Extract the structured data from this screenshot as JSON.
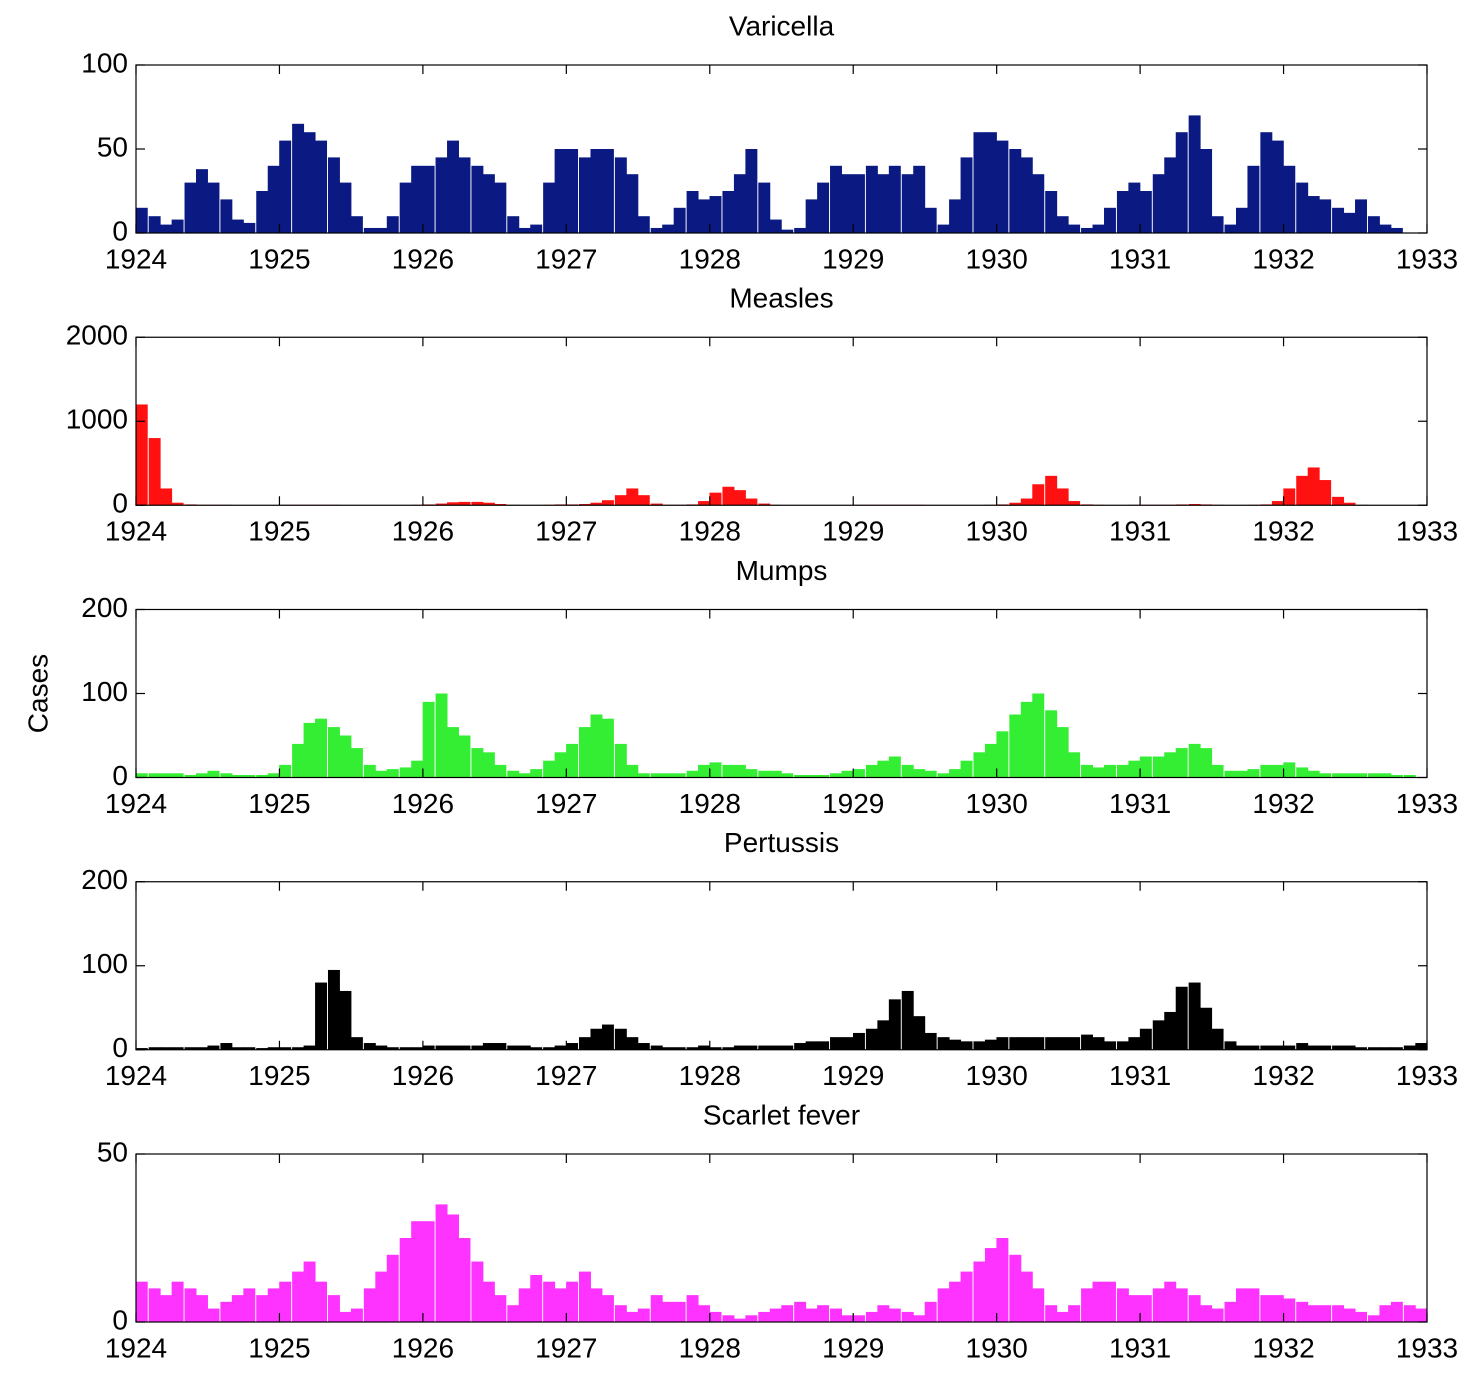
{
  "chart_data": [
    {
      "type": "bar",
      "title": "Varicella",
      "color": "#0b1a82",
      "x": [
        1924.04,
        1924.13,
        1924.21,
        1924.29,
        1924.38,
        1924.46,
        1924.54,
        1924.63,
        1924.71,
        1924.79,
        1924.88,
        1924.96,
        1925.04,
        1925.13,
        1925.21,
        1925.29,
        1925.38,
        1925.46,
        1925.54,
        1925.63,
        1925.71,
        1925.79,
        1925.88,
        1925.96,
        1926.04,
        1926.13,
        1926.21,
        1926.29,
        1926.38,
        1926.46,
        1926.54,
        1926.63,
        1926.71,
        1926.79,
        1926.88,
        1926.96,
        1927.04,
        1927.13,
        1927.21,
        1927.29,
        1927.38,
        1927.46,
        1927.54,
        1927.63,
        1927.71,
        1927.79,
        1927.88,
        1927.96,
        1928.04,
        1928.13,
        1928.21,
        1928.29,
        1928.38,
        1928.46,
        1928.54,
        1928.63,
        1928.71,
        1928.79,
        1928.88,
        1928.96,
        1929.04,
        1929.13,
        1929.21,
        1929.29,
        1929.38,
        1929.46,
        1929.54,
        1929.63,
        1929.71,
        1929.79,
        1929.88,
        1929.96,
        1930.04,
        1930.13,
        1930.21,
        1930.29,
        1930.38,
        1930.46,
        1930.54,
        1930.63,
        1930.71,
        1930.79,
        1930.88,
        1930.96,
        1931.04,
        1931.13,
        1931.21,
        1931.29,
        1931.38,
        1931.46,
        1931.54,
        1931.63,
        1931.71,
        1931.79,
        1931.88,
        1931.96,
        1932.04,
        1932.13,
        1932.21,
        1932.29,
        1932.38,
        1932.46,
        1932.54,
        1932.63,
        1932.71,
        1932.79,
        1932.88,
        1932.96
      ],
      "values": [
        15,
        10,
        5,
        8,
        30,
        38,
        30,
        20,
        8,
        6,
        25,
        40,
        55,
        65,
        60,
        55,
        45,
        30,
        10,
        3,
        3,
        10,
        30,
        40,
        40,
        45,
        55,
        45,
        40,
        35,
        30,
        10,
        3,
        5,
        30,
        50,
        50,
        45,
        50,
        50,
        45,
        35,
        10,
        3,
        5,
        15,
        25,
        20,
        22,
        25,
        35,
        50,
        30,
        8,
        2,
        3,
        20,
        30,
        40,
        35,
        35,
        40,
        35,
        40,
        35,
        40,
        15,
        5,
        20,
        45,
        60,
        60,
        55,
        50,
        45,
        35,
        25,
        10,
        5,
        3,
        5,
        15,
        25,
        30,
        25,
        35,
        45,
        60,
        70,
        50,
        10,
        5,
        15,
        40,
        60,
        55,
        40,
        30,
        22,
        20,
        15,
        12,
        20,
        10,
        5,
        3,
        0,
        0
      ],
      "xlim": [
        1924,
        1933
      ],
      "ylim": [
        0,
        100
      ],
      "xticks": [
        1924,
        1925,
        1926,
        1927,
        1928,
        1929,
        1930,
        1931,
        1932,
        1933
      ],
      "yticks": [
        0,
        50,
        100
      ]
    },
    {
      "type": "bar",
      "title": "Measles",
      "color": "#ff1111",
      "x": [
        1924.04,
        1924.13,
        1924.21,
        1924.29,
        1924.38,
        1924.46,
        1924.54,
        1924.63,
        1924.71,
        1924.79,
        1924.88,
        1924.96,
        1925.04,
        1925.13,
        1925.21,
        1925.29,
        1925.38,
        1925.46,
        1925.54,
        1925.63,
        1925.71,
        1925.79,
        1925.88,
        1925.96,
        1926.04,
        1926.13,
        1926.21,
        1926.29,
        1926.38,
        1926.46,
        1926.54,
        1926.63,
        1926.71,
        1926.79,
        1926.88,
        1926.96,
        1927.04,
        1927.13,
        1927.21,
        1927.29,
        1927.38,
        1927.46,
        1927.54,
        1927.63,
        1927.71,
        1927.79,
        1927.88,
        1927.96,
        1928.04,
        1928.13,
        1928.21,
        1928.29,
        1928.38,
        1928.46,
        1928.54,
        1928.63,
        1928.71,
        1928.79,
        1928.88,
        1928.96,
        1929.04,
        1929.13,
        1929.21,
        1929.29,
        1929.38,
        1929.46,
        1929.54,
        1929.63,
        1929.71,
        1929.79,
        1929.88,
        1929.96,
        1930.04,
        1930.13,
        1930.21,
        1930.29,
        1930.38,
        1930.46,
        1930.54,
        1930.63,
        1930.71,
        1930.79,
        1930.88,
        1930.96,
        1931.04,
        1931.13,
        1931.21,
        1931.29,
        1931.38,
        1931.46,
        1931.54,
        1931.63,
        1931.71,
        1931.79,
        1931.88,
        1931.96,
        1932.04,
        1932.13,
        1932.21,
        1932.29,
        1932.38,
        1932.46,
        1932.54,
        1932.63,
        1932.71,
        1932.79,
        1932.88,
        1932.96
      ],
      "values": [
        1200,
        800,
        200,
        30,
        10,
        5,
        5,
        5,
        3,
        3,
        3,
        3,
        5,
        5,
        5,
        5,
        5,
        3,
        3,
        3,
        3,
        3,
        3,
        5,
        10,
        20,
        35,
        40,
        40,
        30,
        15,
        5,
        3,
        3,
        5,
        10,
        10,
        15,
        30,
        60,
        120,
        200,
        120,
        20,
        5,
        5,
        10,
        50,
        150,
        220,
        180,
        80,
        20,
        5,
        3,
        3,
        3,
        3,
        3,
        3,
        5,
        5,
        5,
        5,
        5,
        5,
        3,
        3,
        3,
        3,
        3,
        5,
        10,
        30,
        80,
        250,
        350,
        200,
        50,
        10,
        5,
        3,
        3,
        5,
        5,
        5,
        5,
        10,
        15,
        10,
        5,
        3,
        3,
        5,
        10,
        50,
        200,
        350,
        450,
        300,
        100,
        30,
        5,
        3,
        3,
        3,
        3,
        3
      ],
      "xlim": [
        1924,
        1933
      ],
      "ylim": [
        0,
        2000
      ],
      "xticks": [
        1924,
        1925,
        1926,
        1927,
        1928,
        1929,
        1930,
        1931,
        1932,
        1933
      ],
      "yticks": [
        0,
        1000,
        2000
      ]
    },
    {
      "type": "bar",
      "title": "Mumps",
      "ylabel": "Cases",
      "color": "#33ee33",
      "x": [
        1924.04,
        1924.13,
        1924.21,
        1924.29,
        1924.38,
        1924.46,
        1924.54,
        1924.63,
        1924.71,
        1924.79,
        1924.88,
        1924.96,
        1925.04,
        1925.13,
        1925.21,
        1925.29,
        1925.38,
        1925.46,
        1925.54,
        1925.63,
        1925.71,
        1925.79,
        1925.88,
        1925.96,
        1926.04,
        1926.13,
        1926.21,
        1926.29,
        1926.38,
        1926.46,
        1926.54,
        1926.63,
        1926.71,
        1926.79,
        1926.88,
        1926.96,
        1927.04,
        1927.13,
        1927.21,
        1927.29,
        1927.38,
        1927.46,
        1927.54,
        1927.63,
        1927.71,
        1927.79,
        1927.88,
        1927.96,
        1928.04,
        1928.13,
        1928.21,
        1928.29,
        1928.38,
        1928.46,
        1928.54,
        1928.63,
        1928.71,
        1928.79,
        1928.88,
        1928.96,
        1929.04,
        1929.13,
        1929.21,
        1929.29,
        1929.38,
        1929.46,
        1929.54,
        1929.63,
        1929.71,
        1929.79,
        1929.88,
        1929.96,
        1930.04,
        1930.13,
        1930.21,
        1930.29,
        1930.38,
        1930.46,
        1930.54,
        1930.63,
        1930.71,
        1930.79,
        1930.88,
        1930.96,
        1931.04,
        1931.13,
        1931.21,
        1931.29,
        1931.38,
        1931.46,
        1931.54,
        1931.63,
        1931.71,
        1931.79,
        1931.88,
        1931.96,
        1932.04,
        1932.13,
        1932.21,
        1932.29,
        1932.38,
        1932.46,
        1932.54,
        1932.63,
        1932.71,
        1932.79,
        1932.88,
        1932.96
      ],
      "values": [
        5,
        5,
        5,
        5,
        3,
        5,
        8,
        5,
        3,
        3,
        3,
        5,
        15,
        40,
        65,
        70,
        60,
        50,
        35,
        15,
        8,
        10,
        12,
        20,
        90,
        100,
        60,
        50,
        35,
        30,
        15,
        8,
        5,
        10,
        20,
        30,
        40,
        60,
        75,
        70,
        40,
        15,
        5,
        5,
        5,
        5,
        8,
        15,
        18,
        15,
        15,
        10,
        8,
        8,
        5,
        3,
        3,
        3,
        5,
        8,
        10,
        15,
        20,
        25,
        15,
        10,
        8,
        5,
        10,
        20,
        30,
        40,
        55,
        75,
        90,
        100,
        80,
        60,
        30,
        15,
        12,
        15,
        15,
        20,
        25,
        25,
        30,
        35,
        40,
        35,
        15,
        8,
        8,
        10,
        15,
        15,
        18,
        12,
        8,
        5,
        5,
        5,
        5,
        5,
        5,
        3,
        3,
        0
      ],
      "xlim": [
        1924,
        1933
      ],
      "ylim": [
        0,
        200
      ],
      "xticks": [
        1924,
        1925,
        1926,
        1927,
        1928,
        1929,
        1930,
        1931,
        1932,
        1933
      ],
      "yticks": [
        0,
        100,
        200
      ]
    },
    {
      "type": "bar",
      "title": "Pertussis",
      "color": "#000000",
      "x": [
        1924.04,
        1924.13,
        1924.21,
        1924.29,
        1924.38,
        1924.46,
        1924.54,
        1924.63,
        1924.71,
        1924.79,
        1924.88,
        1924.96,
        1925.04,
        1925.13,
        1925.21,
        1925.29,
        1925.38,
        1925.46,
        1925.54,
        1925.63,
        1925.71,
        1925.79,
        1925.88,
        1925.96,
        1926.04,
        1926.13,
        1926.21,
        1926.29,
        1926.38,
        1926.46,
        1926.54,
        1926.63,
        1926.71,
        1926.79,
        1926.88,
        1926.96,
        1927.04,
        1927.13,
        1927.21,
        1927.29,
        1927.38,
        1927.46,
        1927.54,
        1927.63,
        1927.71,
        1927.79,
        1927.88,
        1927.96,
        1928.04,
        1928.13,
        1928.21,
        1928.29,
        1928.38,
        1928.46,
        1928.54,
        1928.63,
        1928.71,
        1928.79,
        1928.88,
        1928.96,
        1929.04,
        1929.13,
        1929.21,
        1929.29,
        1929.38,
        1929.46,
        1929.54,
        1929.63,
        1929.71,
        1929.79,
        1929.88,
        1929.96,
        1930.04,
        1930.13,
        1930.21,
        1930.29,
        1930.38,
        1930.46,
        1930.54,
        1930.63,
        1930.71,
        1930.79,
        1930.88,
        1930.96,
        1931.04,
        1931.13,
        1931.21,
        1931.29,
        1931.38,
        1931.46,
        1931.54,
        1931.63,
        1931.71,
        1931.79,
        1931.88,
        1931.96,
        1932.04,
        1932.13,
        1932.21,
        1932.29,
        1932.38,
        1932.46,
        1932.54,
        1932.63,
        1932.71,
        1932.79,
        1932.88,
        1932.96
      ],
      "values": [
        2,
        3,
        3,
        3,
        3,
        3,
        5,
        8,
        3,
        3,
        2,
        3,
        3,
        3,
        5,
        80,
        95,
        70,
        15,
        8,
        5,
        3,
        3,
        3,
        5,
        5,
        5,
        5,
        5,
        8,
        8,
        5,
        5,
        3,
        3,
        5,
        8,
        15,
        25,
        30,
        25,
        15,
        8,
        5,
        3,
        3,
        3,
        5,
        3,
        3,
        5,
        5,
        5,
        5,
        5,
        8,
        10,
        10,
        15,
        15,
        20,
        25,
        35,
        60,
        70,
        40,
        20,
        15,
        12,
        10,
        10,
        12,
        15,
        15,
        15,
        15,
        15,
        15,
        15,
        18,
        15,
        10,
        10,
        15,
        25,
        35,
        45,
        75,
        80,
        50,
        25,
        10,
        5,
        5,
        5,
        5,
        5,
        8,
        5,
        5,
        5,
        5,
        3,
        3,
        3,
        3,
        5,
        8
      ],
      "xlim": [
        1924,
        1933
      ],
      "ylim": [
        0,
        200
      ],
      "xticks": [
        1924,
        1925,
        1926,
        1927,
        1928,
        1929,
        1930,
        1931,
        1932,
        1933
      ],
      "yticks": [
        0,
        100,
        200
      ]
    },
    {
      "type": "bar",
      "title": "Scarlet fever",
      "color": "#ff33ff",
      "x": [
        1924.04,
        1924.13,
        1924.21,
        1924.29,
        1924.38,
        1924.46,
        1924.54,
        1924.63,
        1924.71,
        1924.79,
        1924.88,
        1924.96,
        1925.04,
        1925.13,
        1925.21,
        1925.29,
        1925.38,
        1925.46,
        1925.54,
        1925.63,
        1925.71,
        1925.79,
        1925.88,
        1925.96,
        1926.04,
        1926.13,
        1926.21,
        1926.29,
        1926.38,
        1926.46,
        1926.54,
        1926.63,
        1926.71,
        1926.79,
        1926.88,
        1926.96,
        1927.04,
        1927.13,
        1927.21,
        1927.29,
        1927.38,
        1927.46,
        1927.54,
        1927.63,
        1927.71,
        1927.79,
        1927.88,
        1927.96,
        1928.04,
        1928.13,
        1928.21,
        1928.29,
        1928.38,
        1928.46,
        1928.54,
        1928.63,
        1928.71,
        1928.79,
        1928.88,
        1928.96,
        1929.04,
        1929.13,
        1929.21,
        1929.29,
        1929.38,
        1929.46,
        1929.54,
        1929.63,
        1929.71,
        1929.79,
        1929.88,
        1929.96,
        1930.04,
        1930.13,
        1930.21,
        1930.29,
        1930.38,
        1930.46,
        1930.54,
        1930.63,
        1930.71,
        1930.79,
        1930.88,
        1930.96,
        1931.04,
        1931.13,
        1931.21,
        1931.29,
        1931.38,
        1931.46,
        1931.54,
        1931.63,
        1931.71,
        1931.79,
        1931.88,
        1931.96,
        1932.04,
        1932.13,
        1932.21,
        1932.29,
        1932.38,
        1932.46,
        1932.54,
        1932.63,
        1932.71,
        1932.79,
        1932.88,
        1932.96
      ],
      "values": [
        12,
        10,
        8,
        12,
        10,
        8,
        4,
        6,
        8,
        10,
        8,
        10,
        12,
        15,
        18,
        12,
        8,
        3,
        4,
        10,
        15,
        20,
        25,
        30,
        30,
        35,
        32,
        25,
        18,
        12,
        8,
        5,
        10,
        14,
        12,
        10,
        12,
        15,
        10,
        8,
        5,
        3,
        4,
        8,
        6,
        6,
        8,
        5,
        3,
        2,
        1,
        2,
        3,
        4,
        5,
        6,
        4,
        5,
        4,
        2,
        2,
        3,
        5,
        4,
        3,
        2,
        6,
        10,
        12,
        15,
        18,
        22,
        25,
        20,
        15,
        10,
        5,
        3,
        5,
        10,
        12,
        12,
        10,
        8,
        8,
        10,
        12,
        10,
        8,
        5,
        4,
        6,
        10,
        10,
        8,
        8,
        7,
        6,
        5,
        5,
        5,
        4,
        3,
        2,
        5,
        6,
        5,
        4
      ],
      "xlim": [
        1924,
        1933
      ],
      "ylim": [
        0,
        50
      ],
      "xticks": [
        1924,
        1925,
        1926,
        1927,
        1928,
        1929,
        1930,
        1931,
        1932,
        1933
      ],
      "yticks": [
        0,
        50
      ]
    }
  ]
}
